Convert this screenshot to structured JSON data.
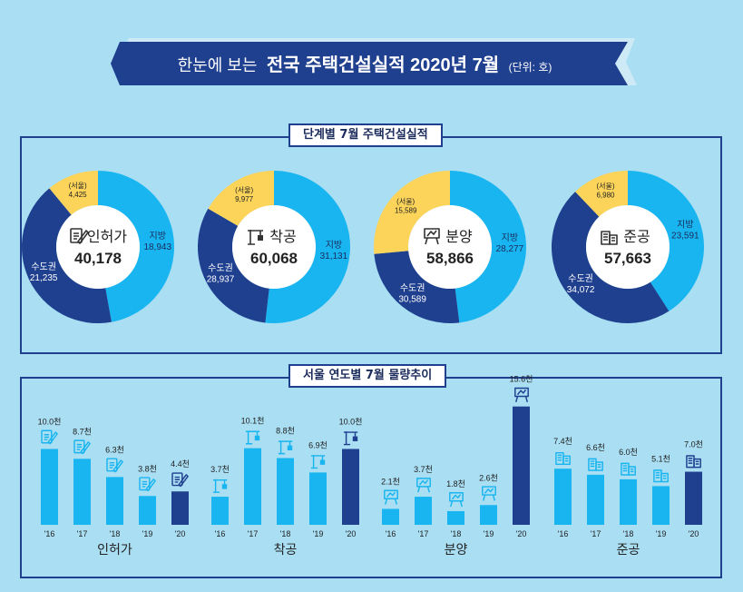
{
  "banner": {
    "prefix": "한눈에 보는",
    "title": "전국 주택건설실적 2020년 7월",
    "unit": "(단위: 호)"
  },
  "donut_section_title": "단계별 7월 주택건설실적",
  "bar_section_title": "서울 연도별 7월 물량추이",
  "colors": {
    "background": "#a9def3",
    "navy": "#1f3f8f",
    "light_blue": "#19b5f0",
    "yellow": "#fcd45a",
    "text_dark": "#1b2b5c"
  },
  "chart_data": [
    {
      "type": "pie",
      "stage": "인허가",
      "icon": "document-pen-icon",
      "total": "40,178",
      "slices": [
        {
          "label": "지방",
          "value": 18943,
          "text": "18,943"
        },
        {
          "label": "수도권",
          "value": 21235,
          "text": "21,235"
        }
      ],
      "seoul": {
        "label": "(서울)",
        "value": 4425,
        "text": "4,425"
      }
    },
    {
      "type": "pie",
      "stage": "착공",
      "icon": "crane-icon",
      "total": "60,068",
      "slices": [
        {
          "label": "지방",
          "value": 31131,
          "text": "31,131"
        },
        {
          "label": "수도권",
          "value": 28937,
          "text": "28,937"
        }
      ],
      "seoul": {
        "label": "(서울)",
        "value": 9977,
        "text": "9,977"
      }
    },
    {
      "type": "pie",
      "stage": "분양",
      "icon": "signpost-icon",
      "total": "58,866",
      "slices": [
        {
          "label": "지방",
          "value": 28277,
          "text": "28,277"
        },
        {
          "label": "수도권",
          "value": 30589,
          "text": "30,589"
        }
      ],
      "seoul": {
        "label": "(서울)",
        "value": 15589,
        "text": "15,589"
      }
    },
    {
      "type": "pie",
      "stage": "준공",
      "icon": "building-icon",
      "total": "57,663",
      "slices": [
        {
          "label": "지방",
          "value": 23591,
          "text": "23,591"
        },
        {
          "label": "수도권",
          "value": 34072,
          "text": "34,072"
        }
      ],
      "seoul": {
        "label": "(서울)",
        "value": 6980,
        "text": "6,980"
      }
    },
    {
      "type": "bar",
      "categories": [
        "'16",
        "'17",
        "'18",
        "'19",
        "'20"
      ],
      "ylim": [
        0,
        17
      ],
      "unit_suffix": "천",
      "groups": [
        {
          "name": "인허가",
          "icon": "document-pen-icon",
          "values": [
            10.0,
            8.7,
            6.3,
            3.8,
            4.4
          ]
        },
        {
          "name": "착공",
          "icon": "crane-icon",
          "values": [
            3.7,
            10.1,
            8.8,
            6.9,
            10.0
          ]
        },
        {
          "name": "분양",
          "icon": "signpost-icon",
          "values": [
            2.1,
            3.7,
            1.8,
            2.6,
            15.6
          ]
        },
        {
          "name": "준공",
          "icon": "building-icon",
          "values": [
            7.4,
            6.6,
            6.0,
            5.1,
            7.0
          ]
        }
      ]
    }
  ]
}
